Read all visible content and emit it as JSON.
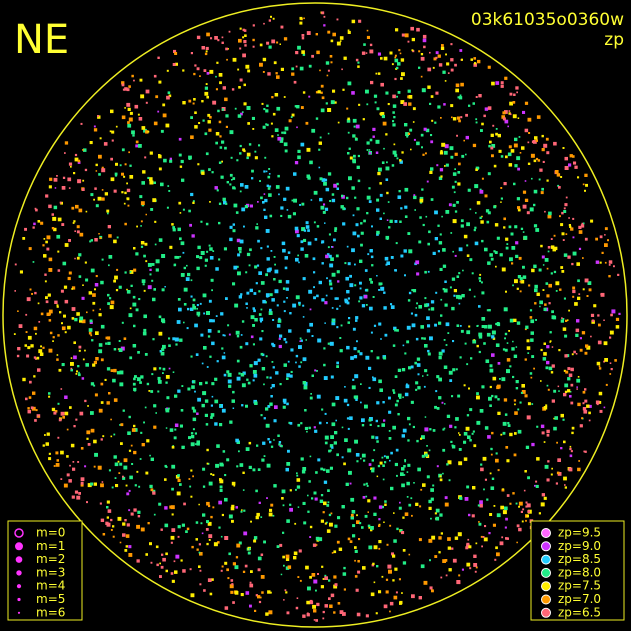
{
  "labels": {
    "direction": "NE",
    "image_id": "03k61035o0360w",
    "mode": "zp"
  },
  "magnitude_legend": {
    "items": [
      "m=0",
      "m=1",
      "m=2",
      "m=3",
      "m=4",
      "m=5",
      "m=6"
    ]
  },
  "zp_legend": {
    "items": [
      {
        "label": "zp=9.5",
        "color": "#ff66ff"
      },
      {
        "label": "zp=9.0",
        "color": "#cc33ff"
      },
      {
        "label": "zp=8.5",
        "color": "#22ccff"
      },
      {
        "label": "zp=8.0",
        "color": "#22ee88"
      },
      {
        "label": "zp=7.5",
        "color": "#ffee00"
      },
      {
        "label": "zp=7.0",
        "color": "#ff9900"
      },
      {
        "label": "zp=6.5",
        "color": "#ff6677"
      }
    ]
  }
}
